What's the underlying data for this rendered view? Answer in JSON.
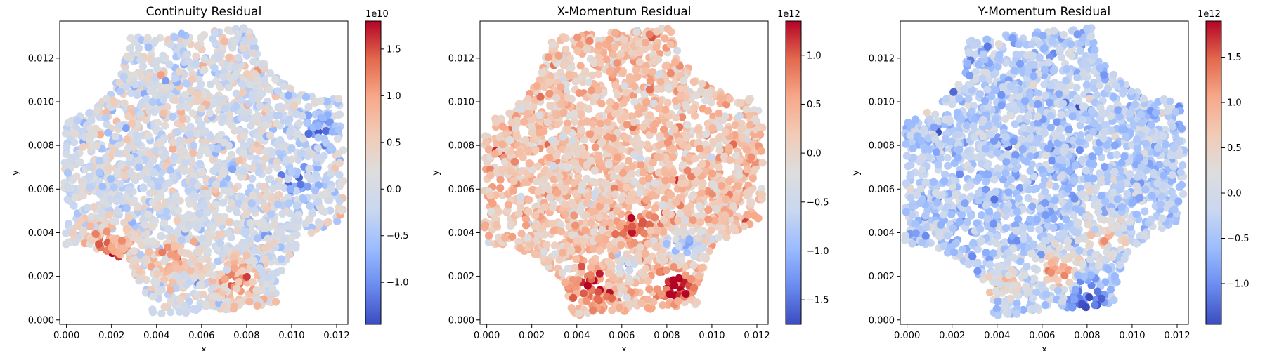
{
  "colors": {
    "cmap": [
      "#3b4cc0",
      "#6a8bef",
      "#9bbcff",
      "#c9d7f0",
      "#dddddd",
      "#f2cbb7",
      "#f7a889",
      "#e2694e",
      "#b40426"
    ]
  },
  "chart_data": [
    {
      "type": "scatter",
      "title": "Continuity Residual",
      "xlabel": "x",
      "ylabel": "y",
      "xlim": [
        -0.0003,
        0.0125
      ],
      "ylim": [
        -0.0002,
        0.0137
      ],
      "xticks": [
        "0.000",
        "0.002",
        "0.004",
        "0.006",
        "0.008",
        "0.010",
        "0.012"
      ],
      "yticks": [
        "0.000",
        "0.002",
        "0.004",
        "0.006",
        "0.008",
        "0.010",
        "0.012"
      ],
      "colorbar": {
        "range": [
          -1.45,
          1.8
        ],
        "ticks": [
          "−1.0",
          "−0.5",
          "0.0",
          "0.5",
          "1.0",
          "1.5"
        ],
        "tick_values": [
          -1.0,
          -0.5,
          0.0,
          0.5,
          1.0,
          1.5
        ],
        "exponent": "1e10"
      },
      "field": {
        "center": 0.0,
        "sigma": 0.32,
        "gradient_x": 0.0,
        "gradient_y": 0.0,
        "hotspots": [
          {
            "x": 0.002,
            "y": 0.0033,
            "value": 1.6
          },
          {
            "x": 0.0076,
            "y": 0.0018,
            "value": 1.4
          },
          {
            "x": 0.0048,
            "y": 0.0028,
            "value": 1.0
          },
          {
            "x": 0.0112,
            "y": 0.0088,
            "value": -1.1
          },
          {
            "x": 0.0105,
            "y": 0.0062,
            "value": -0.9
          }
        ]
      }
    },
    {
      "type": "scatter",
      "title": "X-Momentum Residual",
      "xlabel": "x",
      "ylabel": "y",
      "xlim": [
        -0.0003,
        0.0125
      ],
      "ylim": [
        -0.0002,
        0.0137
      ],
      "xticks": [
        "0.000",
        "0.002",
        "0.004",
        "0.006",
        "0.008",
        "0.010",
        "0.012"
      ],
      "yticks": [
        "0.000",
        "0.002",
        "0.004",
        "0.006",
        "0.008",
        "0.010",
        "0.012"
      ],
      "colorbar": {
        "range": [
          -1.75,
          1.35
        ],
        "ticks": [
          "−1.5",
          "−1.0",
          "−0.5",
          "0.0",
          "0.5",
          "1.0"
        ],
        "tick_values": [
          -1.5,
          -1.0,
          -0.5,
          0.0,
          0.5,
          1.0
        ],
        "exponent": "1e12"
      },
      "field": {
        "center": 0.22,
        "sigma": 0.28,
        "gradient_x": 0.0,
        "gradient_y": 0.0,
        "hotspots": [
          {
            "x": 0.0083,
            "y": 0.0016,
            "value": 1.3
          },
          {
            "x": 0.0048,
            "y": 0.0016,
            "value": 1.1
          },
          {
            "x": 0.0066,
            "y": 0.0044,
            "value": 1.0
          },
          {
            "x": 0.0087,
            "y": 0.0033,
            "value": -1.4
          },
          {
            "x": 0.006,
            "y": 0.0022,
            "value": -0.7
          }
        ]
      }
    },
    {
      "type": "scatter",
      "title": "Y-Momentum Residual",
      "xlabel": "x",
      "ylabel": "y",
      "xlim": [
        -0.0003,
        0.0125
      ],
      "ylim": [
        -0.0002,
        0.0137
      ],
      "xticks": [
        "0.000",
        "0.002",
        "0.004",
        "0.006",
        "0.008",
        "0.010",
        "0.012"
      ],
      "yticks": [
        "0.000",
        "0.002",
        "0.004",
        "0.006",
        "0.008",
        "0.010",
        "0.012"
      ],
      "colorbar": {
        "range": [
          -1.45,
          1.9
        ],
        "ticks": [
          "−1.0",
          "−0.5",
          "0.0",
          "0.5",
          "1.0",
          "1.5"
        ],
        "tick_values": [
          -1.0,
          -0.5,
          0.0,
          0.5,
          1.0,
          1.5
        ],
        "exponent": "1e12"
      },
      "field": {
        "center": -0.35,
        "sigma": 0.3,
        "gradient_x": 0.0,
        "gradient_y": 0.0,
        "hotspots": [
          {
            "x": 0.0068,
            "y": 0.0022,
            "value": 1.6
          },
          {
            "x": 0.0088,
            "y": 0.0038,
            "value": 1.3
          },
          {
            "x": 0.0045,
            "y": 0.0016,
            "value": 1.0
          },
          {
            "x": 0.008,
            "y": 0.0012,
            "value": -1.1
          }
        ]
      }
    }
  ]
}
